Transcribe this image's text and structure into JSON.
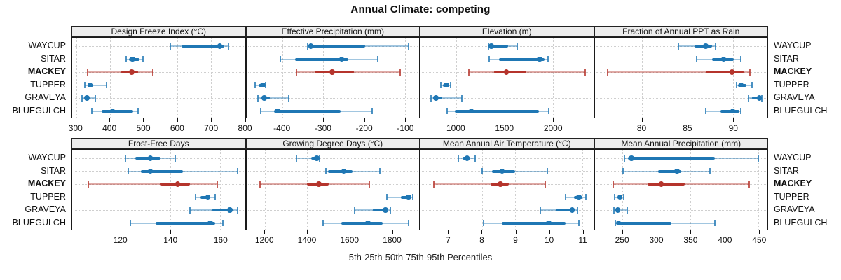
{
  "title": "Annual Climate: competing",
  "caption": "5th-25th-50th-75th-95th Percentiles",
  "percentile_labels": [
    "5th",
    "25th",
    "50th",
    "75th",
    "95th"
  ],
  "stations": [
    "WAYCUP",
    "SITAR",
    "MACKEY",
    "TUPPER",
    "GRAVEYA",
    "BLUEGULCH"
  ],
  "highlight_station": "MACKEY",
  "colors": {
    "series_blue": "#1f77b4",
    "series_red": "#b5342c",
    "grid": "#cfcfcf",
    "strip_bg": "#ededed",
    "panel_border": "#1a1a1a",
    "text": "#111111"
  },
  "chart_data": [
    {
      "type": "dotplot",
      "row": 0,
      "col": 0,
      "title": "Design Freeze Index (°C)",
      "xlim": [
        288,
        802
      ],
      "xticks": [
        300,
        400,
        500,
        600,
        700,
        800
      ],
      "series": [
        {
          "station": "WAYCUP",
          "values": [
            580,
            614,
            727,
            741,
            754
          ]
        },
        {
          "station": "SITAR",
          "values": [
            448,
            457,
            467,
            489,
            498
          ]
        },
        {
          "station": "MACKEY",
          "values": [
            333,
            435,
            465,
            483,
            527
          ]
        },
        {
          "station": "TUPPER",
          "values": [
            325,
            333,
            341,
            351,
            391
          ]
        },
        {
          "station": "GRAVEYA",
          "values": [
            318,
            325,
            332,
            339,
            356
          ]
        },
        {
          "station": "BLUEGULCH",
          "values": [
            347,
            376,
            408,
            470,
            483
          ]
        }
      ]
    },
    {
      "type": "dotplot",
      "row": 0,
      "col": 1,
      "title": "Effective Precipitation (mm)",
      "xlim": [
        -488,
        -65
      ],
      "xticks": [
        -400,
        -300,
        -200,
        -100
      ],
      "series": [
        {
          "station": "WAYCUP",
          "values": [
            -337,
            -332,
            -330,
            -197,
            -90
          ]
        },
        {
          "station": "SITAR",
          "values": [
            -405,
            -368,
            -255,
            -238,
            -167
          ]
        },
        {
          "station": "MACKEY",
          "values": [
            -365,
            -320,
            -278,
            -225,
            -112
          ]
        },
        {
          "station": "TUPPER",
          "values": [
            -466,
            -458,
            -448,
            -444,
            -441
          ]
        },
        {
          "station": "GRAVEYA",
          "values": [
            -459,
            -452,
            -444,
            -430,
            -385
          ]
        },
        {
          "station": "BLUEGULCH",
          "values": [
            -452,
            -420,
            -412,
            -257,
            -180
          ]
        }
      ]
    },
    {
      "type": "dotplot",
      "row": 0,
      "col": 2,
      "title": "Elevation (m)",
      "xlim": [
        630,
        2420
      ],
      "xticks": [
        1000,
        1500,
        2000
      ],
      "series": [
        {
          "station": "WAYCUP",
          "values": [
            1335,
            1350,
            1365,
            1540,
            1630
          ]
        },
        {
          "station": "SITAR",
          "values": [
            1340,
            1445,
            1865,
            1915,
            1950
          ]
        },
        {
          "station": "MACKEY",
          "values": [
            1130,
            1395,
            1520,
            1725,
            2335
          ]
        },
        {
          "station": "TUPPER",
          "values": [
            840,
            865,
            900,
            920,
            940
          ]
        },
        {
          "station": "GRAVEYA",
          "values": [
            740,
            760,
            790,
            855,
            1060
          ]
        },
        {
          "station": "BLUEGULCH",
          "values": [
            905,
            985,
            1155,
            1855,
            1960
          ]
        }
      ]
    },
    {
      "type": "dotplot",
      "row": 0,
      "col": 3,
      "title": "Fraction of Annual PPT as Rain",
      "xlim": [
        74.8,
        93.8
      ],
      "xticks": [
        80,
        85,
        90
      ],
      "series": [
        {
          "station": "WAYCUP",
          "values": [
            84.0,
            85.8,
            87.0,
            87.7,
            88.1
          ]
        },
        {
          "station": "SITAR",
          "values": [
            86.0,
            87.7,
            89.0,
            90.1,
            90.9
          ]
        },
        {
          "station": "MACKEY",
          "values": [
            76.2,
            87.0,
            89.9,
            91.2,
            91.9
          ]
        },
        {
          "station": "TUPPER",
          "values": [
            90.4,
            90.6,
            90.9,
            91.5,
            92.1
          ]
        },
        {
          "station": "GRAVEYA",
          "values": [
            91.7,
            92.1,
            92.9,
            93.0,
            93.2
          ]
        },
        {
          "station": "BLUEGULCH",
          "values": [
            87.0,
            88.6,
            90.0,
            90.7,
            90.9
          ]
        }
      ]
    },
    {
      "type": "dotplot",
      "row": 1,
      "col": 0,
      "title": "Frost-Free Days",
      "xlim": [
        100.5,
        170
      ],
      "xticks": [
        120,
        140,
        160
      ],
      "series": [
        {
          "station": "WAYCUP",
          "values": [
            122,
            126,
            132,
            136,
            142
          ]
        },
        {
          "station": "SITAR",
          "values": [
            123,
            128,
            132,
            145,
            167
          ]
        },
        {
          "station": "MACKEY",
          "values": [
            107,
            136,
            143,
            148,
            159
          ]
        },
        {
          "station": "TUPPER",
          "values": [
            150,
            152,
            155,
            156,
            158
          ]
        },
        {
          "station": "GRAVEYA",
          "values": [
            148,
            157,
            164,
            165,
            167
          ]
        },
        {
          "station": "BLUEGULCH",
          "values": [
            124,
            134,
            156,
            158,
            161
          ]
        }
      ]
    },
    {
      "type": "dotplot",
      "row": 1,
      "col": 1,
      "title": "Growing Degree Days (°C)",
      "xlim": [
        1112,
        1930
      ],
      "xticks": [
        1200,
        1400,
        1600,
        1800
      ],
      "series": [
        {
          "station": "WAYCUP",
          "values": [
            1350,
            1420,
            1445,
            1452,
            1460
          ]
        },
        {
          "station": "SITAR",
          "values": [
            1488,
            1500,
            1573,
            1616,
            1743
          ]
        },
        {
          "station": "MACKEY",
          "values": [
            1178,
            1398,
            1455,
            1502,
            1693
          ]
        },
        {
          "station": "TUPPER",
          "values": [
            1776,
            1845,
            1880,
            1890,
            1900
          ]
        },
        {
          "station": "GRAVEYA",
          "values": [
            1625,
            1710,
            1770,
            1780,
            1795
          ]
        },
        {
          "station": "BLUEGULCH",
          "values": [
            1474,
            1562,
            1688,
            1759,
            1880
          ]
        }
      ]
    },
    {
      "type": "dotplot",
      "row": 1,
      "col": 2,
      "title": "Mean Annual Air Temperature (°C)",
      "xlim": [
        6.16,
        11.33
      ],
      "xticks": [
        7,
        8,
        9,
        10,
        11
      ],
      "series": [
        {
          "station": "WAYCUP",
          "values": [
            7.3,
            7.42,
            7.55,
            7.65,
            7.8
          ]
        },
        {
          "station": "SITAR",
          "values": [
            8.0,
            8.3,
            8.6,
            9.0,
            9.95
          ]
        },
        {
          "station": "MACKEY",
          "values": [
            6.55,
            8.25,
            8.55,
            8.8,
            9.9
          ]
        },
        {
          "station": "TUPPER",
          "values": [
            10.5,
            10.75,
            10.9,
            11.0,
            11.1
          ]
        },
        {
          "station": "GRAVEYA",
          "values": [
            9.75,
            10.2,
            10.7,
            10.78,
            10.85
          ]
        },
        {
          "station": "BLUEGULCH",
          "values": [
            8.05,
            8.6,
            10.0,
            10.5,
            10.9
          ]
        }
      ]
    },
    {
      "type": "dotplot",
      "row": 1,
      "col": 3,
      "title": "Mean Annual Precipitation (mm)",
      "xlim": [
        209,
        463
      ],
      "xticks": [
        250,
        300,
        350,
        400,
        450
      ],
      "series": [
        {
          "station": "WAYCUP",
          "values": [
            253,
            258,
            263,
            386,
            450
          ]
        },
        {
          "station": "SITAR",
          "values": [
            251,
            302,
            330,
            336,
            378
          ]
        },
        {
          "station": "MACKEY",
          "values": [
            236,
            287,
            307,
            341,
            436
          ]
        },
        {
          "station": "TUPPER",
          "values": [
            238,
            242,
            246,
            248,
            252
          ]
        },
        {
          "station": "GRAVEYA",
          "values": [
            237,
            240,
            243,
            246,
            257
          ]
        },
        {
          "station": "BLUEGULCH",
          "values": [
            239,
            241,
            244,
            322,
            386
          ]
        }
      ]
    }
  ]
}
